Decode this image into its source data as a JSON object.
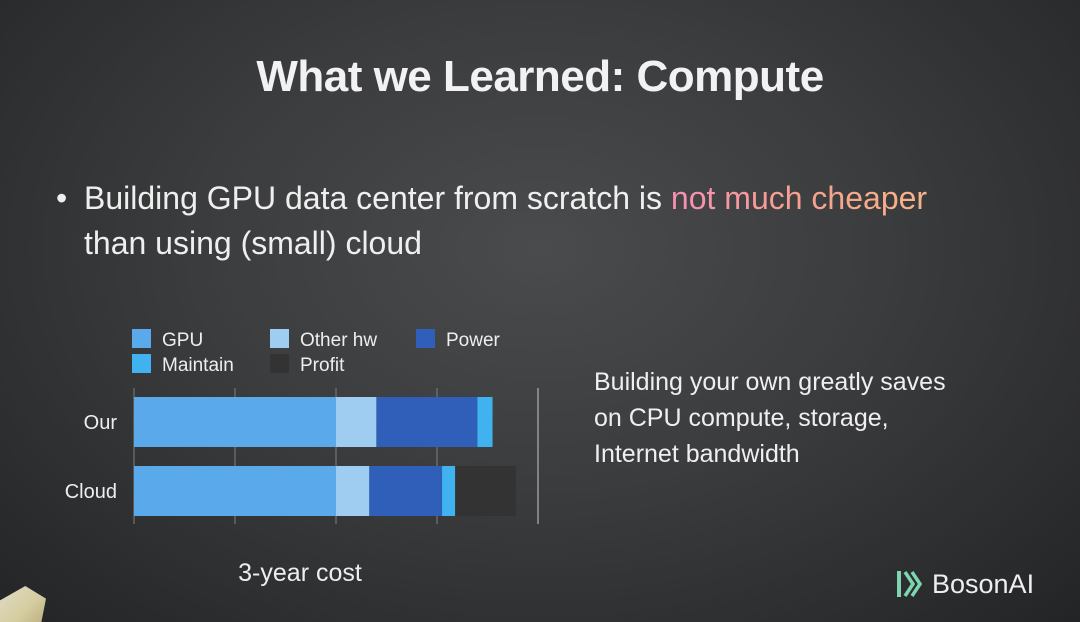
{
  "slide": {
    "title": "What we Learned: Compute",
    "bullet": {
      "symbol": "•",
      "text_before": "Building GPU data center from scratch is ",
      "highlight": "not much cheaper",
      "line_two": "than using (small) cloud"
    },
    "side_note": {
      "line1": "Building your own greatly saves",
      "line2": "on CPU compute, storage,",
      "line3": "Internet bandwidth"
    },
    "brand": {
      "name": "BosonAI",
      "icon": "boson-logo-icon"
    },
    "colors": {
      "background": "#3b3c3e",
      "highlight_start": "#f78fb3",
      "highlight_end": "#f6b48a"
    }
  },
  "chart_data": {
    "type": "bar",
    "orientation": "horizontal",
    "stacked": true,
    "categories": [
      "Our",
      "Cloud"
    ],
    "series": [
      {
        "name": "GPU",
        "color": "#5aa9ea",
        "values": [
          2.0,
          2.0
        ]
      },
      {
        "name": "Other hw",
        "color": "#9fcdf2",
        "values": [
          0.4,
          0.33
        ]
      },
      {
        "name": "Power",
        "color": "#2f5fb8",
        "values": [
          1.0,
          0.72
        ]
      },
      {
        "name": "Maintain",
        "color": "#3fb2ef",
        "values": [
          0.15,
          0.13
        ]
      },
      {
        "name": "Profit",
        "color": "#333333",
        "values": [
          0.0,
          0.6
        ]
      }
    ],
    "xlim": [
      0,
      4
    ],
    "grid": true,
    "xlabel": "3-year cost",
    "legend_placement": "top-left"
  }
}
